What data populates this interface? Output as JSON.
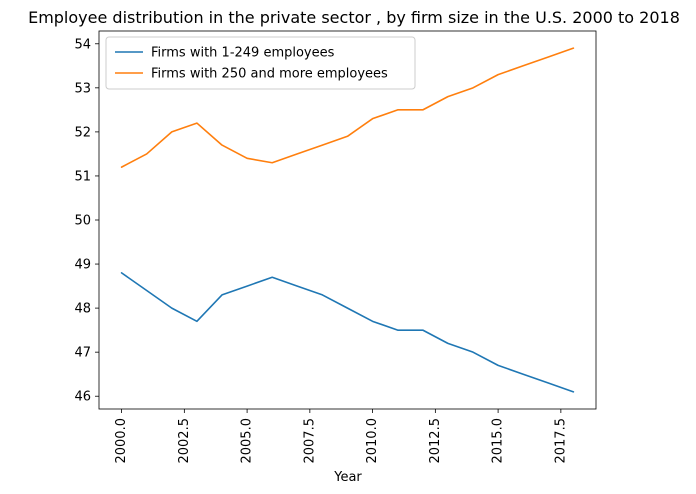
{
  "chart_data": {
    "type": "line",
    "title": "Employee distribution in the private sector , by firm size in the U.S. 2000 to 2018",
    "xlabel": "Year",
    "ylabel": "",
    "x": [
      2000,
      2001,
      2002,
      2003,
      2004,
      2005,
      2006,
      2007,
      2008,
      2009,
      2010,
      2011,
      2012,
      2013,
      2014,
      2015,
      2016,
      2017,
      2018
    ],
    "series": [
      {
        "name": "Firms with 1-249 employees",
        "color": "#1f77b4",
        "values": [
          48.8,
          48.4,
          48.0,
          47.7,
          48.3,
          48.5,
          48.7,
          48.5,
          48.3,
          48.0,
          47.7,
          47.5,
          47.5,
          47.2,
          47.0,
          46.7,
          46.5,
          46.3,
          46.1
        ]
      },
      {
        "name": "Firms with 250 and more employees",
        "color": "#ff7f0e",
        "values": [
          51.2,
          51.5,
          52.0,
          52.2,
          51.7,
          51.4,
          51.3,
          51.5,
          51.7,
          51.9,
          52.3,
          52.5,
          52.5,
          52.8,
          53.0,
          53.3,
          53.5,
          53.7,
          53.9
        ]
      }
    ],
    "xticks": [
      "2000.0",
      "2002.5",
      "2005.0",
      "2007.5",
      "2010.0",
      "2012.5",
      "2015.0",
      "2017.5"
    ],
    "yticks": [
      "46",
      "47",
      "48",
      "49",
      "50",
      "51",
      "52",
      "53",
      "54"
    ],
    "xlim": [
      1999.1,
      2018.9
    ],
    "ylim": [
      45.71,
      54.29
    ],
    "grid": false,
    "legend_position": "upper-left"
  }
}
